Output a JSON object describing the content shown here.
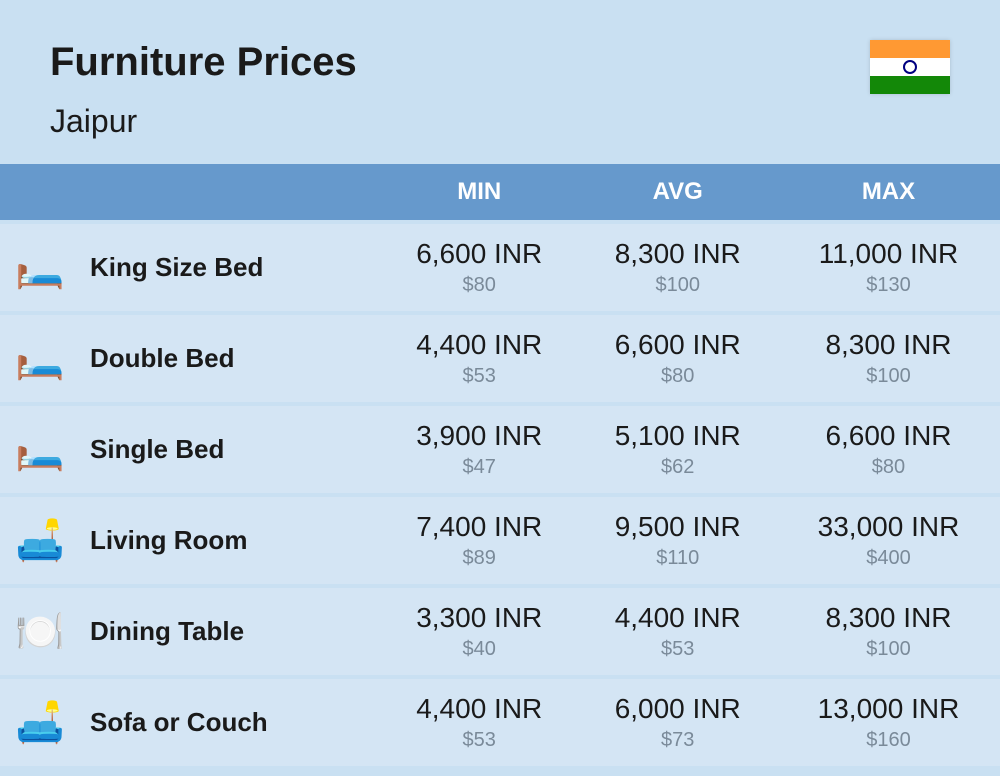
{
  "header": {
    "title": "Furniture Prices",
    "city": "Jaipur"
  },
  "flag": {
    "colors": {
      "top": "#FF9933",
      "middle": "#ffffff",
      "bottom": "#138808",
      "chakra": "#000080"
    }
  },
  "table": {
    "type": "table",
    "header_bg": "#6699cc",
    "header_text_color": "#ffffff",
    "row_bg": "#d4e5f4",
    "page_bg": "#c9e0f2",
    "price_inr_color": "#1a1a1a",
    "price_usd_color": "#7a8a99",
    "title_fontsize": 40,
    "city_fontsize": 32,
    "header_fontsize": 24,
    "label_fontsize": 26,
    "price_fontsize": 28,
    "usd_fontsize": 20,
    "columns": [
      "",
      "",
      "MIN",
      "AVG",
      "MAX"
    ],
    "rows": [
      {
        "icon": "🛏️",
        "label": "King Size Bed",
        "min": {
          "inr": "6,600 INR",
          "usd": "$80"
        },
        "avg": {
          "inr": "8,300 INR",
          "usd": "$100"
        },
        "max": {
          "inr": "11,000 INR",
          "usd": "$130"
        }
      },
      {
        "icon": "🛏️",
        "label": "Double Bed",
        "min": {
          "inr": "4,400 INR",
          "usd": "$53"
        },
        "avg": {
          "inr": "6,600 INR",
          "usd": "$80"
        },
        "max": {
          "inr": "8,300 INR",
          "usd": "$100"
        }
      },
      {
        "icon": "🛏️",
        "label": "Single Bed",
        "min": {
          "inr": "3,900 INR",
          "usd": "$47"
        },
        "avg": {
          "inr": "5,100 INR",
          "usd": "$62"
        },
        "max": {
          "inr": "6,600 INR",
          "usd": "$80"
        }
      },
      {
        "icon": "🛋️",
        "label": "Living Room",
        "min": {
          "inr": "7,400 INR",
          "usd": "$89"
        },
        "avg": {
          "inr": "9,500 INR",
          "usd": "$110"
        },
        "max": {
          "inr": "33,000 INR",
          "usd": "$400"
        }
      },
      {
        "icon": "🍽️",
        "label": "Dining Table",
        "min": {
          "inr": "3,300 INR",
          "usd": "$40"
        },
        "avg": {
          "inr": "4,400 INR",
          "usd": "$53"
        },
        "max": {
          "inr": "8,300 INR",
          "usd": "$100"
        }
      },
      {
        "icon": "🛋️",
        "label": "Sofa or Couch",
        "min": {
          "inr": "4,400 INR",
          "usd": "$53"
        },
        "avg": {
          "inr": "6,000 INR",
          "usd": "$73"
        },
        "max": {
          "inr": "13,000 INR",
          "usd": "$160"
        }
      }
    ]
  }
}
